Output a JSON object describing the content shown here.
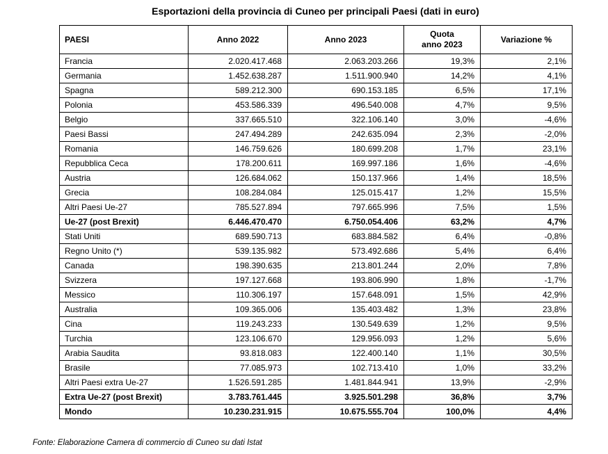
{
  "title": "Esportazioni della provincia di Cuneo per principali Paesi (dati in euro)",
  "footer": "Fonte: Elaborazione Camera di commercio di Cuneo su dati Istat",
  "table": {
    "headers": [
      "PAESI",
      "Anno 2022",
      "Anno 2023",
      "Quota\nanno 2023",
      "Variazione %"
    ],
    "rows": [
      {
        "paesi": "Francia",
        "anno2022": "2.020.417.468",
        "anno2023": "2.063.203.266",
        "quota": "19,3%",
        "variazione": "2,1%",
        "bold": false
      },
      {
        "paesi": "Germania",
        "anno2022": "1.452.638.287",
        "anno2023": "1.511.900.940",
        "quota": "14,2%",
        "variazione": "4,1%",
        "bold": false
      },
      {
        "paesi": "Spagna",
        "anno2022": "589.212.300",
        "anno2023": "690.153.185",
        "quota": "6,5%",
        "variazione": "17,1%",
        "bold": false
      },
      {
        "paesi": "Polonia",
        "anno2022": "453.586.339",
        "anno2023": "496.540.008",
        "quota": "4,7%",
        "variazione": "9,5%",
        "bold": false
      },
      {
        "paesi": "Belgio",
        "anno2022": "337.665.510",
        "anno2023": "322.106.140",
        "quota": "3,0%",
        "variazione": "-4,6%",
        "bold": false
      },
      {
        "paesi": "Paesi Bassi",
        "anno2022": "247.494.289",
        "anno2023": "242.635.094",
        "quota": "2,3%",
        "variazione": "-2,0%",
        "bold": false
      },
      {
        "paesi": "Romania",
        "anno2022": "146.759.626",
        "anno2023": "180.699.208",
        "quota": "1,7%",
        "variazione": "23,1%",
        "bold": false
      },
      {
        "paesi": "Repubblica Ceca",
        "anno2022": "178.200.611",
        "anno2023": "169.997.186",
        "quota": "1,6%",
        "variazione": "-4,6%",
        "bold": false
      },
      {
        "paesi": "Austria",
        "anno2022": "126.684.062",
        "anno2023": "150.137.966",
        "quota": "1,4%",
        "variazione": "18,5%",
        "bold": false
      },
      {
        "paesi": "Grecia",
        "anno2022": "108.284.084",
        "anno2023": "125.015.417",
        "quota": "1,2%",
        "variazione": "15,5%",
        "bold": false
      },
      {
        "paesi": "Altri Paesi Ue-27",
        "anno2022": "785.527.894",
        "anno2023": "797.665.996",
        "quota": "7,5%",
        "variazione": "1,5%",
        "bold": false
      },
      {
        "paesi": "Ue-27 (post Brexit)",
        "anno2022": "6.446.470.470",
        "anno2023": "6.750.054.406",
        "quota": "63,2%",
        "variazione": "4,7%",
        "bold": true
      },
      {
        "paesi": "Stati Uniti",
        "anno2022": "689.590.713",
        "anno2023": "683.884.582",
        "quota": "6,4%",
        "variazione": "-0,8%",
        "bold": false
      },
      {
        "paesi": "Regno Unito (*)",
        "anno2022": "539.135.982",
        "anno2023": "573.492.686",
        "quota": "5,4%",
        "variazione": "6,4%",
        "bold": false
      },
      {
        "paesi": "Canada",
        "anno2022": "198.390.635",
        "anno2023": "213.801.244",
        "quota": "2,0%",
        "variazione": "7,8%",
        "bold": false
      },
      {
        "paesi": "Svizzera",
        "anno2022": "197.127.668",
        "anno2023": "193.806.990",
        "quota": "1,8%",
        "variazione": "-1,7%",
        "bold": false
      },
      {
        "paesi": "Messico",
        "anno2022": "110.306.197",
        "anno2023": "157.648.091",
        "quota": "1,5%",
        "variazione": "42,9%",
        "bold": false
      },
      {
        "paesi": "Australia",
        "anno2022": "109.365.006",
        "anno2023": "135.403.482",
        "quota": "1,3%",
        "variazione": "23,8%",
        "bold": false
      },
      {
        "paesi": "Cina",
        "anno2022": "119.243.233",
        "anno2023": "130.549.639",
        "quota": "1,2%",
        "variazione": "9,5%",
        "bold": false
      },
      {
        "paesi": "Turchia",
        "anno2022": "123.106.670",
        "anno2023": "129.956.093",
        "quota": "1,2%",
        "variazione": "5,6%",
        "bold": false
      },
      {
        "paesi": "Arabia Saudita",
        "anno2022": "93.818.083",
        "anno2023": "122.400.140",
        "quota": "1,1%",
        "variazione": "30,5%",
        "bold": false
      },
      {
        "paesi": "Brasile",
        "anno2022": "77.085.973",
        "anno2023": "102.713.410",
        "quota": "1,0%",
        "variazione": "33,2%",
        "bold": false
      },
      {
        "paesi": "Altri Paesi extra Ue-27",
        "anno2022": "1.526.591.285",
        "anno2023": "1.481.844.941",
        "quota": "13,9%",
        "variazione": "-2,9%",
        "bold": false
      },
      {
        "paesi": "Extra Ue-27 (post Brexit)",
        "anno2022": "3.783.761.445",
        "anno2023": "3.925.501.298",
        "quota": "36,8%",
        "variazione": "3,7%",
        "bold": true
      },
      {
        "paesi": "Mondo",
        "anno2022": "10.230.231.915",
        "anno2023": "10.675.555.704",
        "quota": "100,0%",
        "variazione": "4,4%",
        "bold": true
      }
    ]
  }
}
